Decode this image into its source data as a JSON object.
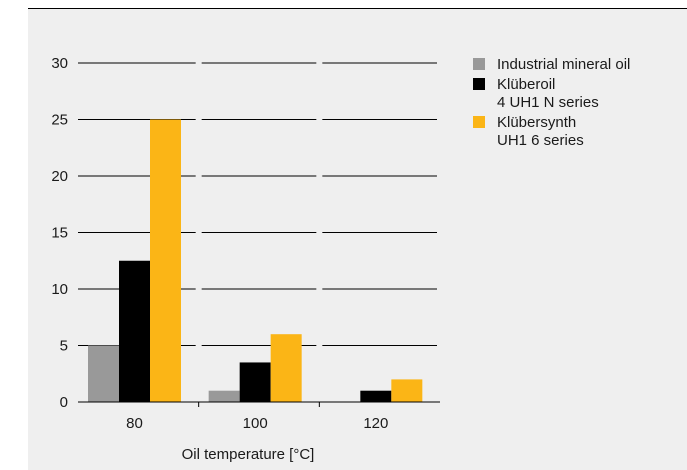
{
  "chart_data": {
    "type": "bar",
    "title": "",
    "xlabel": "Oil temperature [°C]",
    "ylabel": "",
    "categories": [
      "80",
      "100",
      "120"
    ],
    "ylim": [
      0,
      30
    ],
    "yticks": [
      0,
      5,
      10,
      15,
      20,
      25,
      30
    ],
    "grid": true,
    "legend_position": "top-right",
    "series": [
      {
        "name": "Industrial mineral oil",
        "name_lines": [
          "Industrial mineral oil"
        ],
        "color": "#999999",
        "values": [
          5,
          1,
          0
        ]
      },
      {
        "name": "Klüberoil 4 UH1 N series",
        "name_lines": [
          "Klüberoil",
          "4 UH1 N series"
        ],
        "color": "#000000",
        "values": [
          12.5,
          3.5,
          1
        ]
      },
      {
        "name": "Klübersynth UH1 6 series",
        "name_lines": [
          "Klübersynth",
          "UH1 6 series"
        ],
        "color": "#fbb516",
        "values": [
          25,
          6,
          2
        ]
      }
    ]
  }
}
